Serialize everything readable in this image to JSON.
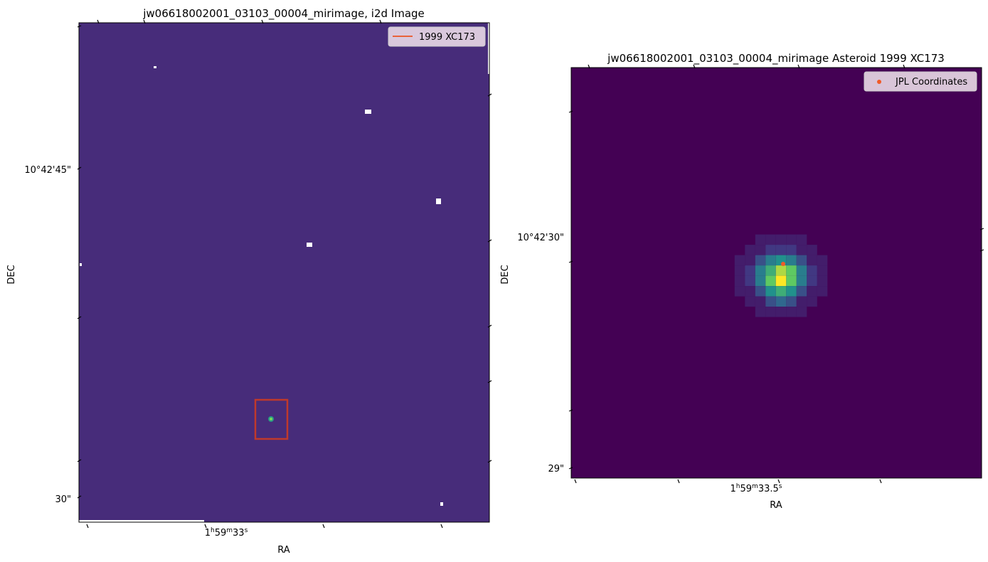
{
  "chart_data": [
    {
      "type": "heatmap",
      "title": "jw06618002001_03103_00004_mirimage,  i2d Image",
      "xlabel": "RA",
      "ylabel": "DEC",
      "x_ticks": [
        "1h59m33s"
      ],
      "x_tick_labels": [
        {
          "base": "1",
          "h": "h",
          "m_val": "59",
          "m": "m",
          "s_val": "33",
          "s": "s"
        }
      ],
      "y_tick_labels": [
        "10°42'45\"",
        "30\""
      ],
      "grid": false,
      "legend": {
        "placement": "upper right",
        "entries": [
          {
            "label": "1999 XC173",
            "color": "#e8623a",
            "marker": "line"
          }
        ]
      },
      "colormap": "viridis",
      "background_color": "#472c7a",
      "highlight_box_color": "#c0392b",
      "source_value": "bright point source inside red box"
    },
    {
      "type": "heatmap",
      "title": "jw06618002001_03103_00004_mirimage Asteroid 1999 XC173",
      "xlabel": "RA",
      "ylabel": "DEC",
      "x_tick_labels": [
        {
          "base": "1",
          "h": "h",
          "m_val": "59",
          "m": "m",
          "s_val": "33.5",
          "s": "s"
        }
      ],
      "y_tick_labels": [
        "10°42'30\"",
        "29\""
      ],
      "grid": false,
      "legend": {
        "placement": "upper right",
        "entries": [
          {
            "label": "JPL Coordinates",
            "color": "#f05a28",
            "marker": "dot"
          }
        ]
      },
      "colormap": "viridis",
      "background_color": "#440154",
      "pixel_values": [
        [
          0,
          0,
          0,
          0,
          0,
          0,
          0,
          0,
          0,
          0,
          0
        ],
        [
          0,
          0,
          0,
          1,
          1,
          1,
          1,
          1,
          0,
          0,
          0
        ],
        [
          0,
          0,
          1,
          1,
          2,
          2,
          2,
          1,
          1,
          0,
          0
        ],
        [
          0,
          1,
          1,
          3,
          5,
          6,
          5,
          3,
          1,
          1,
          0
        ],
        [
          0,
          1,
          2,
          5,
          7,
          9,
          8,
          5,
          2,
          1,
          0
        ],
        [
          0,
          1,
          2,
          5,
          8,
          10,
          8,
          5,
          2,
          1,
          0
        ],
        [
          0,
          1,
          1,
          3,
          6,
          7,
          6,
          3,
          1,
          1,
          0
        ],
        [
          0,
          0,
          1,
          1,
          3,
          4,
          3,
          1,
          1,
          0,
          0
        ],
        [
          0,
          0,
          0,
          1,
          1,
          1,
          1,
          1,
          0,
          0,
          0
        ],
        [
          0,
          0,
          0,
          0,
          0,
          0,
          0,
          0,
          0,
          0,
          0
        ]
      ],
      "pixel_value_max": 10
    }
  ]
}
